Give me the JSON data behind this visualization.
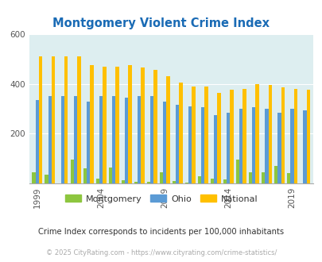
{
  "title": "Montgomery Violent Crime Index",
  "title_color": "#1a6bb5",
  "subtitle": "Crime Index corresponds to incidents per 100,000 inhabitants",
  "footer": "© 2025 CityRating.com - https://www.cityrating.com/crime-statistics/",
  "years": [
    1999,
    2000,
    2001,
    2002,
    2003,
    2004,
    2005,
    2006,
    2007,
    2008,
    2009,
    2010,
    2011,
    2012,
    2013,
    2014,
    2015,
    2016,
    2017,
    2018,
    2019,
    2020
  ],
  "montgomery": [
    45,
    35,
    0,
    95,
    60,
    20,
    65,
    12,
    5,
    5,
    45,
    8,
    3,
    30,
    20,
    15,
    95,
    45,
    45,
    70,
    40,
    0
  ],
  "ohio": [
    335,
    350,
    350,
    350,
    330,
    350,
    350,
    345,
    350,
    350,
    330,
    315,
    310,
    305,
    275,
    285,
    300,
    305,
    300,
    285,
    300,
    295
  ],
  "national": [
    510,
    510,
    510,
    510,
    475,
    470,
    470,
    475,
    465,
    455,
    430,
    405,
    390,
    390,
    365,
    375,
    380,
    400,
    395,
    385,
    380,
    375
  ],
  "ylim": [
    0,
    600
  ],
  "yticks": [
    200,
    400,
    600
  ],
  "color_montgomery": "#8dc63f",
  "color_ohio": "#5b9bd5",
  "color_national": "#ffc000",
  "bg_color": "#ddeef0",
  "bar_width": 0.27,
  "xlabel_ticks": [
    1999,
    2004,
    2009,
    2014,
    2019
  ]
}
